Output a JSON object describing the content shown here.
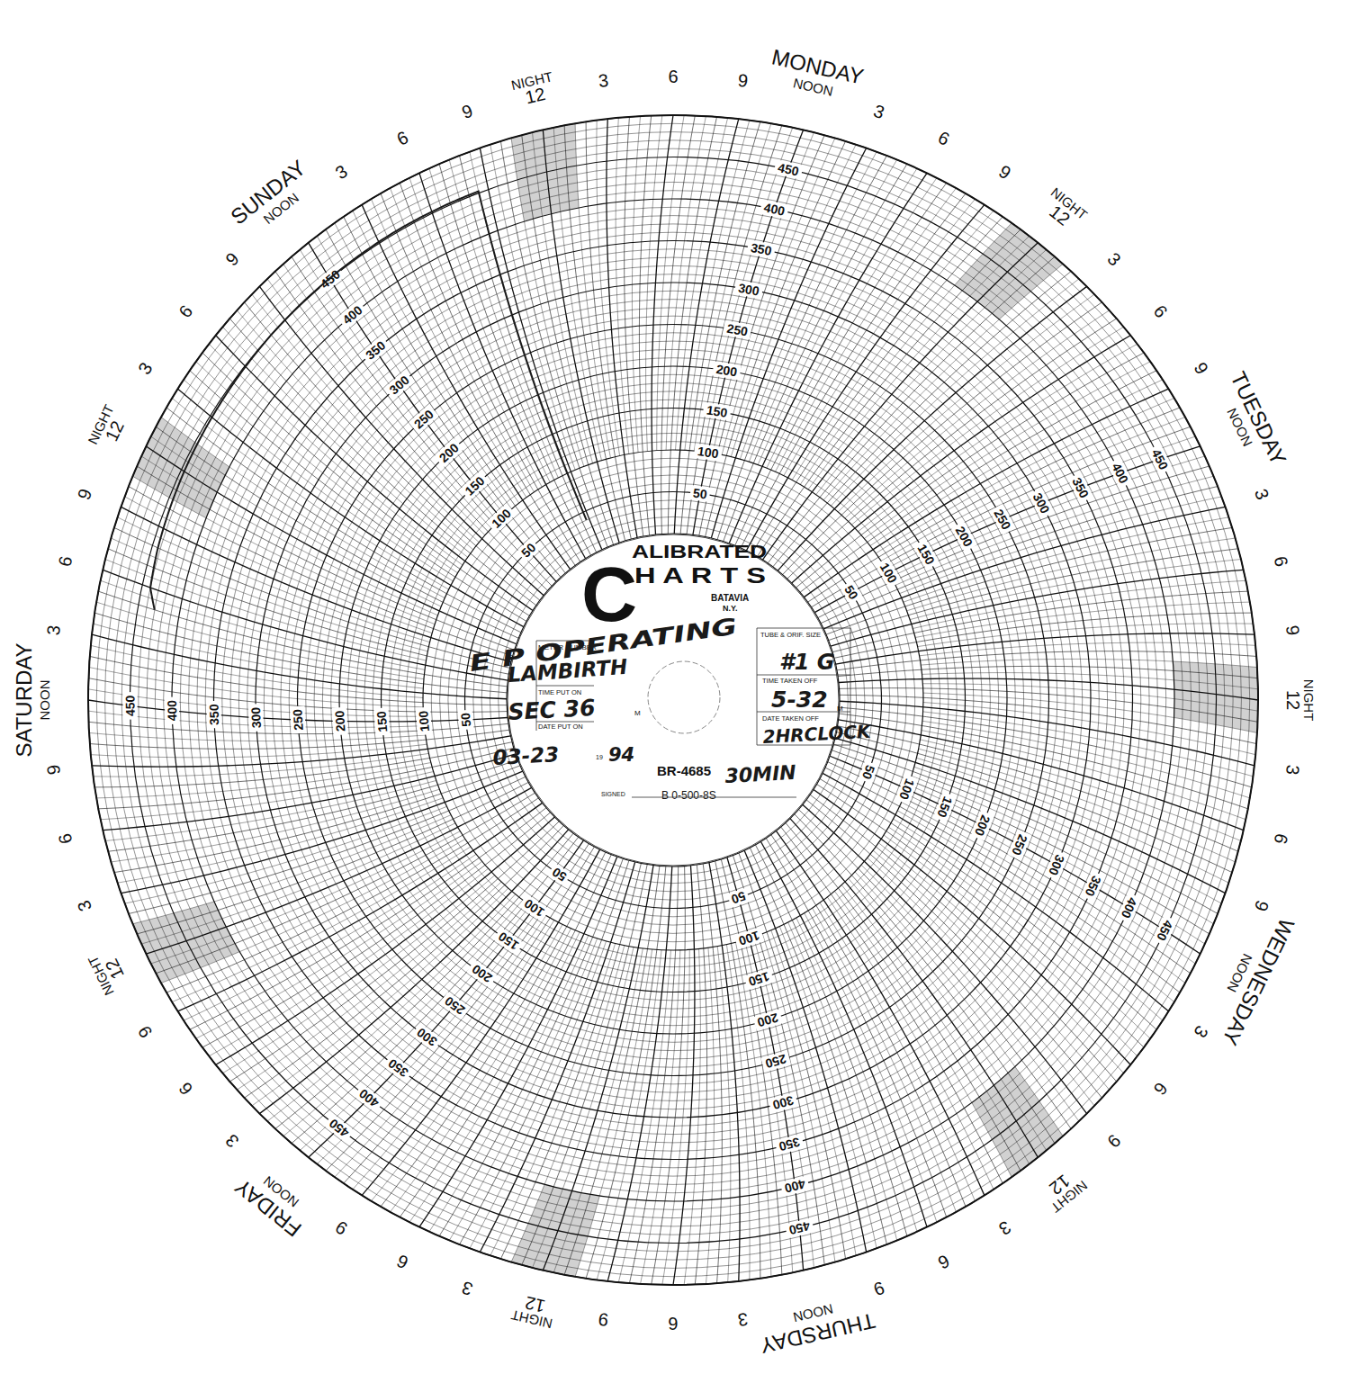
{
  "chart_data": {
    "type": "circular_recorder",
    "logo": {
      "initial": "C",
      "lines": [
        "ALIBRATED",
        "H A R T S"
      ],
      "place": "BATAVIA",
      "state": "N.Y."
    },
    "form_labels": {
      "meter_number": "METER NUMBER",
      "time_put_on": "TIME PUT ON",
      "date_put_on": "DATE PUT ON",
      "tube_orifice": "TUBE & ORIF. SIZE",
      "time_taken_off": "TIME TAKEN OFF",
      "date_taken_off": "DATE TAKEN OFF",
      "meridiem": "M",
      "century": "19",
      "signed": "SIGNED"
    },
    "chart_number": "BR-4685",
    "range_code": "B 0-500-8S",
    "handwritten": {
      "meter_number": "E P OPERATING",
      "operator": "LAMBIRTH",
      "location": "SEC 36",
      "date_put_on": "03-23",
      "year": "94",
      "tube_orifice": "#1 G",
      "time_taken_off": "5-32",
      "clock": "2HRCLOCK",
      "interval": "30MIN"
    },
    "days": [
      "SATURDAY",
      "SUNDAY",
      "MONDAY",
      "TUESDAY",
      "WEDNESDAY",
      "THURSDAY",
      "FRIDAY"
    ],
    "hour_labels": [
      "NOON",
      "3",
      "6",
      "9",
      "NIGHT 12",
      "3",
      "6",
      "9"
    ],
    "xlim": [
      0,
      168
    ],
    "ylim": [
      0,
      500
    ],
    "yticks": [
      50,
      100,
      150,
      200,
      250,
      300,
      350,
      400,
      450
    ],
    "grid": true,
    "x": [
      5,
      6,
      8,
      12,
      16,
      20,
      24,
      28,
      31,
      32.5,
      32.6
    ],
    "values": [
      430,
      440,
      443,
      446,
      448,
      450,
      451,
      452,
      452,
      452,
      40
    ],
    "color": "#1a1a1a"
  }
}
